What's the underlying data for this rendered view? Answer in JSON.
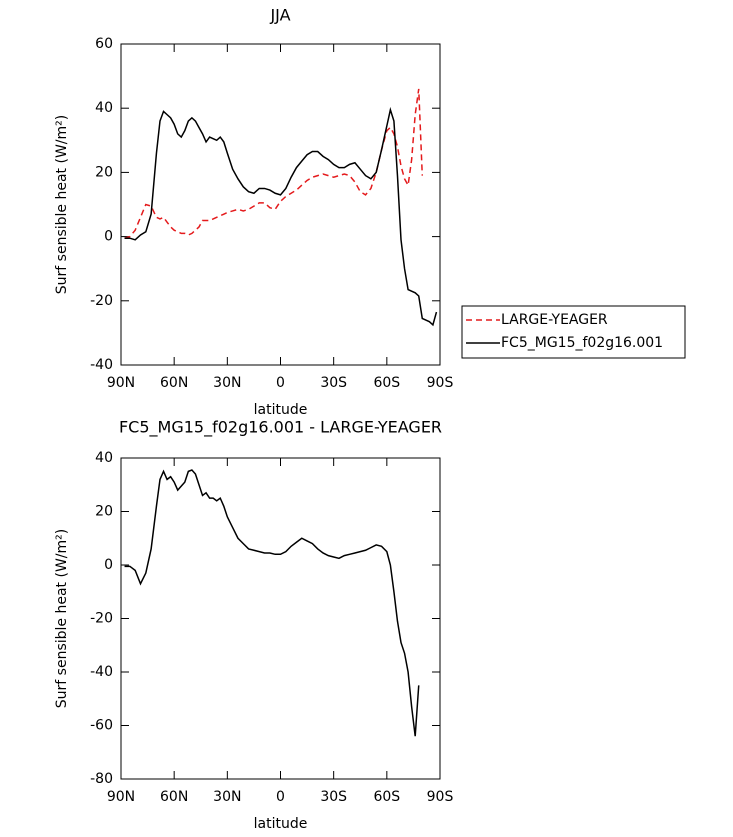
{
  "chart_data": [
    {
      "type": "line",
      "title": "JJA",
      "x_label": "latitude",
      "y_label": "Surf sensible heat (W/m²)",
      "x": [
        88,
        85,
        82,
        79,
        76,
        73,
        70,
        68,
        66,
        64,
        62,
        60,
        58,
        56,
        54,
        52,
        50,
        48,
        46,
        44,
        42,
        40,
        38,
        36,
        34,
        32,
        30,
        27,
        24,
        21,
        18,
        15,
        12,
        9,
        6,
        3,
        0,
        -3,
        -6,
        -9,
        -12,
        -15,
        -18,
        -21,
        -24,
        -27,
        -30,
        -33,
        -36,
        -39,
        -42,
        -45,
        -48,
        -51,
        -54,
        -57,
        -60,
        -62,
        -64,
        -66,
        -68,
        -70,
        -72,
        -74,
        -76,
        -78,
        -80,
        -82,
        -84,
        -86,
        -88
      ],
      "series": [
        {
          "name": "LARGE-YEAGER",
          "color": "#e41a1c",
          "line_style": "dashed",
          "values": [
            -0.5,
            0,
            2,
            6,
            10,
            9.5,
            6,
            5.5,
            6,
            4.5,
            3,
            2,
            1.5,
            1,
            1,
            0.5,
            1,
            2,
            3,
            5,
            5,
            5,
            5.5,
            6,
            6.5,
            7,
            7.5,
            8,
            8.5,
            8,
            8.5,
            9.5,
            10.5,
            10.5,
            9,
            8.5,
            11,
            12.5,
            13.5,
            14.5,
            16,
            17.5,
            18.5,
            19,
            19.5,
            19,
            18.5,
            19,
            19.5,
            19,
            17,
            14,
            13,
            15,
            20,
            27,
            33,
            34,
            32,
            28,
            22,
            18,
            16,
            24,
            38,
            46,
            19,
            null,
            null,
            null,
            null
          ]
        },
        {
          "name": "FC5_MG15_f02g16.001",
          "color": "#000000",
          "line_style": "solid",
          "values": [
            -0.5,
            -0.5,
            -1,
            0.5,
            1.5,
            7,
            26,
            36,
            39,
            38,
            37,
            35,
            32,
            31,
            33,
            36,
            37,
            36,
            34,
            32,
            29.5,
            31,
            30.5,
            30,
            31,
            29.5,
            26,
            21,
            18,
            15.5,
            14,
            13.5,
            15,
            15,
            14.5,
            13.5,
            13,
            15,
            18.5,
            21.5,
            23.5,
            25.5,
            26.5,
            26.5,
            25,
            24,
            22.5,
            21.5,
            21.5,
            22.5,
            23,
            21,
            19,
            18,
            20,
            27,
            34.5,
            39.5,
            36,
            19,
            -1,
            -10,
            -16.5,
            -17,
            -17.5,
            -18.5,
            -25.5,
            -26,
            -26.5,
            -27.5,
            -23.5
          ]
        }
      ],
      "legend": "outside-right",
      "xlim": [
        90,
        -90
      ],
      "ylim": [
        -40,
        60
      ],
      "xticks": [
        {
          "value": 90,
          "label": "90N"
        },
        {
          "value": 60,
          "label": "60N"
        },
        {
          "value": 30,
          "label": "30N"
        },
        0,
        {
          "value": -30,
          "label": "30S"
        },
        {
          "value": -60,
          "label": "60S"
        },
        {
          "value": -90,
          "label": "90S"
        }
      ],
      "yticks": [
        -40,
        -20,
        0,
        20,
        40,
        60
      ]
    },
    {
      "type": "line",
      "title": "FC5_MG15_f02g16.001 - LARGE-YEAGER",
      "x_label": "latitude",
      "y_label": "Surf sensible heat (W/m²)",
      "x": [
        88,
        85,
        82,
        79,
        76,
        73,
        70,
        68,
        66,
        64,
        62,
        60,
        58,
        56,
        54,
        52,
        50,
        48,
        46,
        44,
        42,
        40,
        38,
        36,
        34,
        32,
        30,
        27,
        24,
        21,
        18,
        15,
        12,
        9,
        6,
        3,
        0,
        -3,
        -6,
        -9,
        -12,
        -15,
        -18,
        -21,
        -24,
        -27,
        -30,
        -33,
        -36,
        -39,
        -42,
        -45,
        -48,
        -51,
        -54,
        -57,
        -60,
        -62,
        -64,
        -66,
        -68,
        -70,
        -72,
        -74,
        -76,
        -78,
        -80,
        -82,
        -84,
        -86,
        -88
      ],
      "color": "#000000",
      "values": [
        -0.5,
        -0.5,
        -2,
        -7,
        -3,
        6,
        22,
        32,
        35,
        32,
        33,
        31,
        28,
        29.5,
        31,
        35,
        35.5,
        34,
        30,
        26,
        27,
        25,
        25,
        24,
        25,
        22,
        18,
        14,
        10,
        8,
        6,
        5.5,
        5,
        4.5,
        4.5,
        4,
        4,
        5,
        7,
        8.5,
        10,
        9,
        8,
        6,
        4.5,
        3.5,
        3,
        2.5,
        3.5,
        4,
        4.5,
        5,
        5.5,
        6.5,
        7.5,
        7,
        5,
        0,
        -10,
        -21,
        -29,
        -33,
        -40,
        -53,
        -64,
        -45,
        null,
        null,
        null,
        null,
        null
      ],
      "xlim": [
        90,
        -90
      ],
      "ylim": [
        -80,
        40
      ],
      "xticks": [
        {
          "value": 90,
          "label": "90N"
        },
        {
          "value": 60,
          "label": "60N"
        },
        {
          "value": 30,
          "label": "30N"
        },
        0,
        {
          "value": -30,
          "label": "30S"
        },
        {
          "value": -60,
          "label": "60S"
        },
        {
          "value": -90,
          "label": "90S"
        }
      ],
      "yticks": [
        -80,
        -60,
        -40,
        -20,
        0,
        20,
        40
      ]
    }
  ]
}
